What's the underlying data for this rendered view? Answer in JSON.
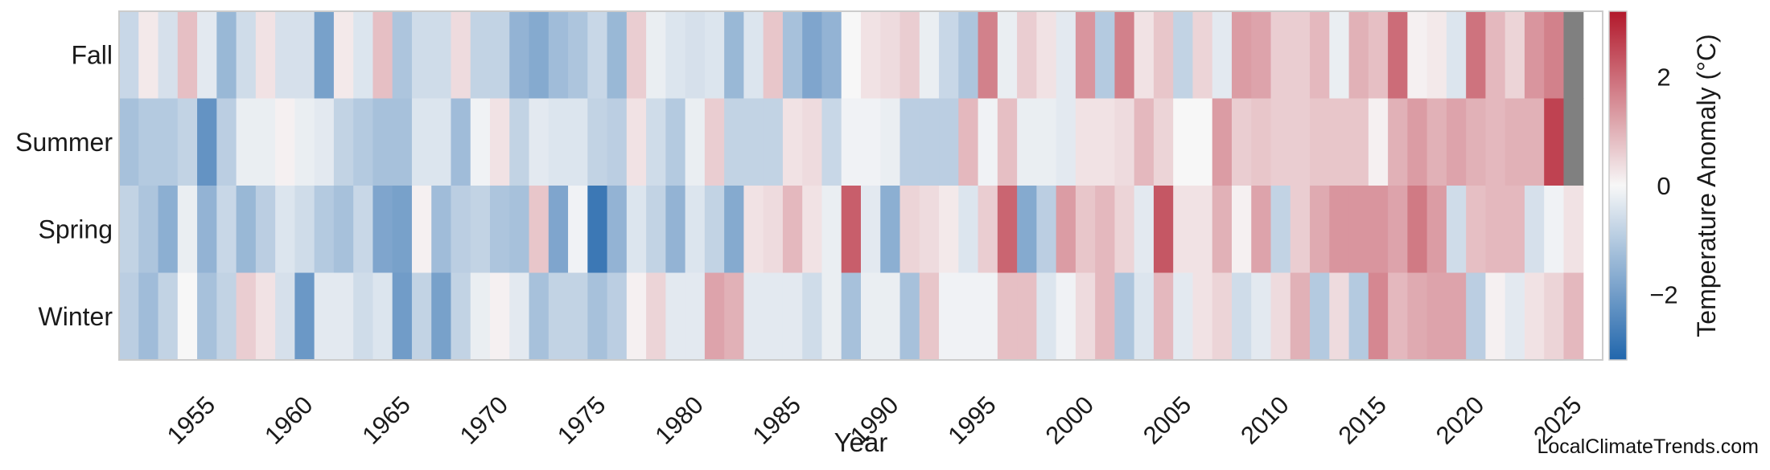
{
  "chart_data": {
    "type": "heatmap",
    "title": "",
    "xlabel": "Year",
    "colorbar_label": "Temperature Anomaly (°C)",
    "colorbar_ticks": [
      2,
      0,
      -2
    ],
    "colorbar_tick_labels": [
      "2",
      "0",
      "−2"
    ],
    "color_range": [
      -3.2,
      3.2
    ],
    "colormap": {
      "low": "#2166ac",
      "mid": "#f7f7f7",
      "high": "#b2182b",
      "missing": "#808080"
    },
    "year_start": 1950,
    "year_end": 2025,
    "x_ticks": [
      1955,
      1960,
      1965,
      1970,
      1975,
      1980,
      1985,
      1990,
      1995,
      2000,
      2005,
      2010,
      2015,
      2020,
      2025
    ],
    "x_tick_labels": [
      "1955",
      "1960",
      "1965",
      "1970",
      "1975",
      "1980",
      "1985",
      "1990",
      "1995",
      "2000",
      "2005",
      "2010",
      "2015",
      "2020",
      "2025"
    ],
    "rows": [
      "Fall",
      "Summer",
      "Spring",
      "Winter"
    ],
    "series": [
      {
        "name": "Fall",
        "values": [
          -0.7,
          0.2,
          -0.5,
          0.8,
          -0.3,
          -1.4,
          -0.6,
          0.3,
          -0.5,
          -0.5,
          -1.9,
          0.2,
          -0.4,
          0.8,
          -1.1,
          -0.6,
          -0.6,
          0.4,
          -0.8,
          -0.8,
          -1.5,
          -1.7,
          -1.3,
          -1.1,
          -0.7,
          -1.4,
          0.6,
          -0.2,
          -0.4,
          -0.5,
          -0.4,
          -1.4,
          -0.4,
          0.7,
          -1.2,
          -1.8,
          -1.5,
          0.0,
          0.3,
          0.4,
          0.6,
          -0.2,
          -0.7,
          -1.1,
          1.7,
          -0.2,
          0.6,
          0.3,
          -0.3,
          1.4,
          -1.0,
          1.7,
          0.3,
          0.7,
          -0.8,
          0.5,
          -0.3,
          1.3,
          1.2,
          0.6,
          0.6,
          0.9,
          -0.2,
          1.0,
          0.8,
          2.0,
          0.1,
          0.2,
          -0.4,
          1.9,
          0.9,
          0.5,
          1.4,
          1.7,
          null
        ]
      },
      {
        "name": "Summer",
        "values": [
          -1.2,
          -1.0,
          -1.0,
          -0.8,
          -2.2,
          -0.9,
          -0.2,
          -0.2,
          0.1,
          -0.2,
          -0.3,
          -0.8,
          -1.0,
          -1.2,
          -1.2,
          -0.4,
          -0.4,
          -1.3,
          -0.1,
          0.3,
          -0.8,
          -0.3,
          -0.4,
          -0.4,
          -0.8,
          -0.9,
          0.3,
          -0.6,
          -1.0,
          -0.2,
          0.6,
          -0.8,
          -0.8,
          -0.8,
          0.3,
          0.4,
          -0.7,
          -0.1,
          -0.1,
          -0.2,
          -0.9,
          -0.9,
          -0.9,
          0.9,
          -0.1,
          0.8,
          -0.2,
          -0.2,
          -0.3,
          0.3,
          0.3,
          0.4,
          0.9,
          0.5,
          0.0,
          0.0,
          1.3,
          0.6,
          0.7,
          0.6,
          0.6,
          0.7,
          0.7,
          0.7,
          0.1,
          1.0,
          1.3,
          1.0,
          1.2,
          1.0,
          0.9,
          1.0,
          1.0,
          2.6,
          null
        ]
      },
      {
        "name": "Spring",
        "values": [
          -0.8,
          -1.1,
          -1.6,
          -0.2,
          -1.5,
          -0.7,
          -1.4,
          -0.9,
          -0.4,
          -0.6,
          -1.0,
          -1.2,
          -0.7,
          -1.8,
          -1.9,
          0.1,
          -1.3,
          -0.9,
          -0.8,
          -1.1,
          -1.2,
          0.7,
          -1.8,
          -0.1,
          -2.8,
          -1.5,
          -0.4,
          -0.8,
          -1.5,
          -0.4,
          -0.8,
          -1.7,
          0.3,
          0.4,
          0.9,
          0.3,
          -0.2,
          2.2,
          -0.3,
          -1.6,
          0.5,
          0.4,
          0.2,
          -0.4,
          0.6,
          2.1,
          -1.7,
          -0.9,
          1.3,
          0.7,
          0.9,
          0.5,
          -0.3,
          2.3,
          0.3,
          0.3,
          1.0,
          0.1,
          1.2,
          -0.8,
          0.6,
          1.1,
          1.4,
          1.4,
          1.4,
          1.2,
          1.8,
          1.3,
          -0.6,
          0.8,
          0.9,
          0.9,
          -0.5,
          -0.1,
          0.3
        ]
      },
      {
        "name": "Winter",
        "values": [
          -0.9,
          -1.3,
          -0.8,
          0.0,
          -1.2,
          -0.8,
          0.6,
          0.3,
          -0.5,
          -2.1,
          -0.3,
          -0.3,
          -0.6,
          -0.4,
          -2.0,
          -0.8,
          -1.9,
          -0.8,
          -0.2,
          0.1,
          -0.3,
          -1.2,
          -0.8,
          -0.8,
          -1.2,
          -0.9,
          0.1,
          0.5,
          -0.3,
          -0.3,
          1.2,
          1.0,
          -0.3,
          -0.3,
          -0.3,
          -0.6,
          -0.2,
          -1.2,
          -0.2,
          -0.2,
          -1.2,
          0.7,
          -0.1,
          -0.1,
          -0.1,
          0.8,
          0.8,
          -0.4,
          -0.1,
          0.4,
          0.9,
          -1.1,
          -0.4,
          0.9,
          -0.3,
          0.3,
          0.5,
          -0.6,
          -0.3,
          0.4,
          1.0,
          -1.0,
          0.4,
          -1.0,
          1.6,
          0.9,
          1.1,
          1.2,
          1.2,
          -0.9,
          0.1,
          -0.3,
          0.3,
          0.5,
          0.9
        ]
      }
    ]
  },
  "credit": "LocalClimateTrends.com"
}
